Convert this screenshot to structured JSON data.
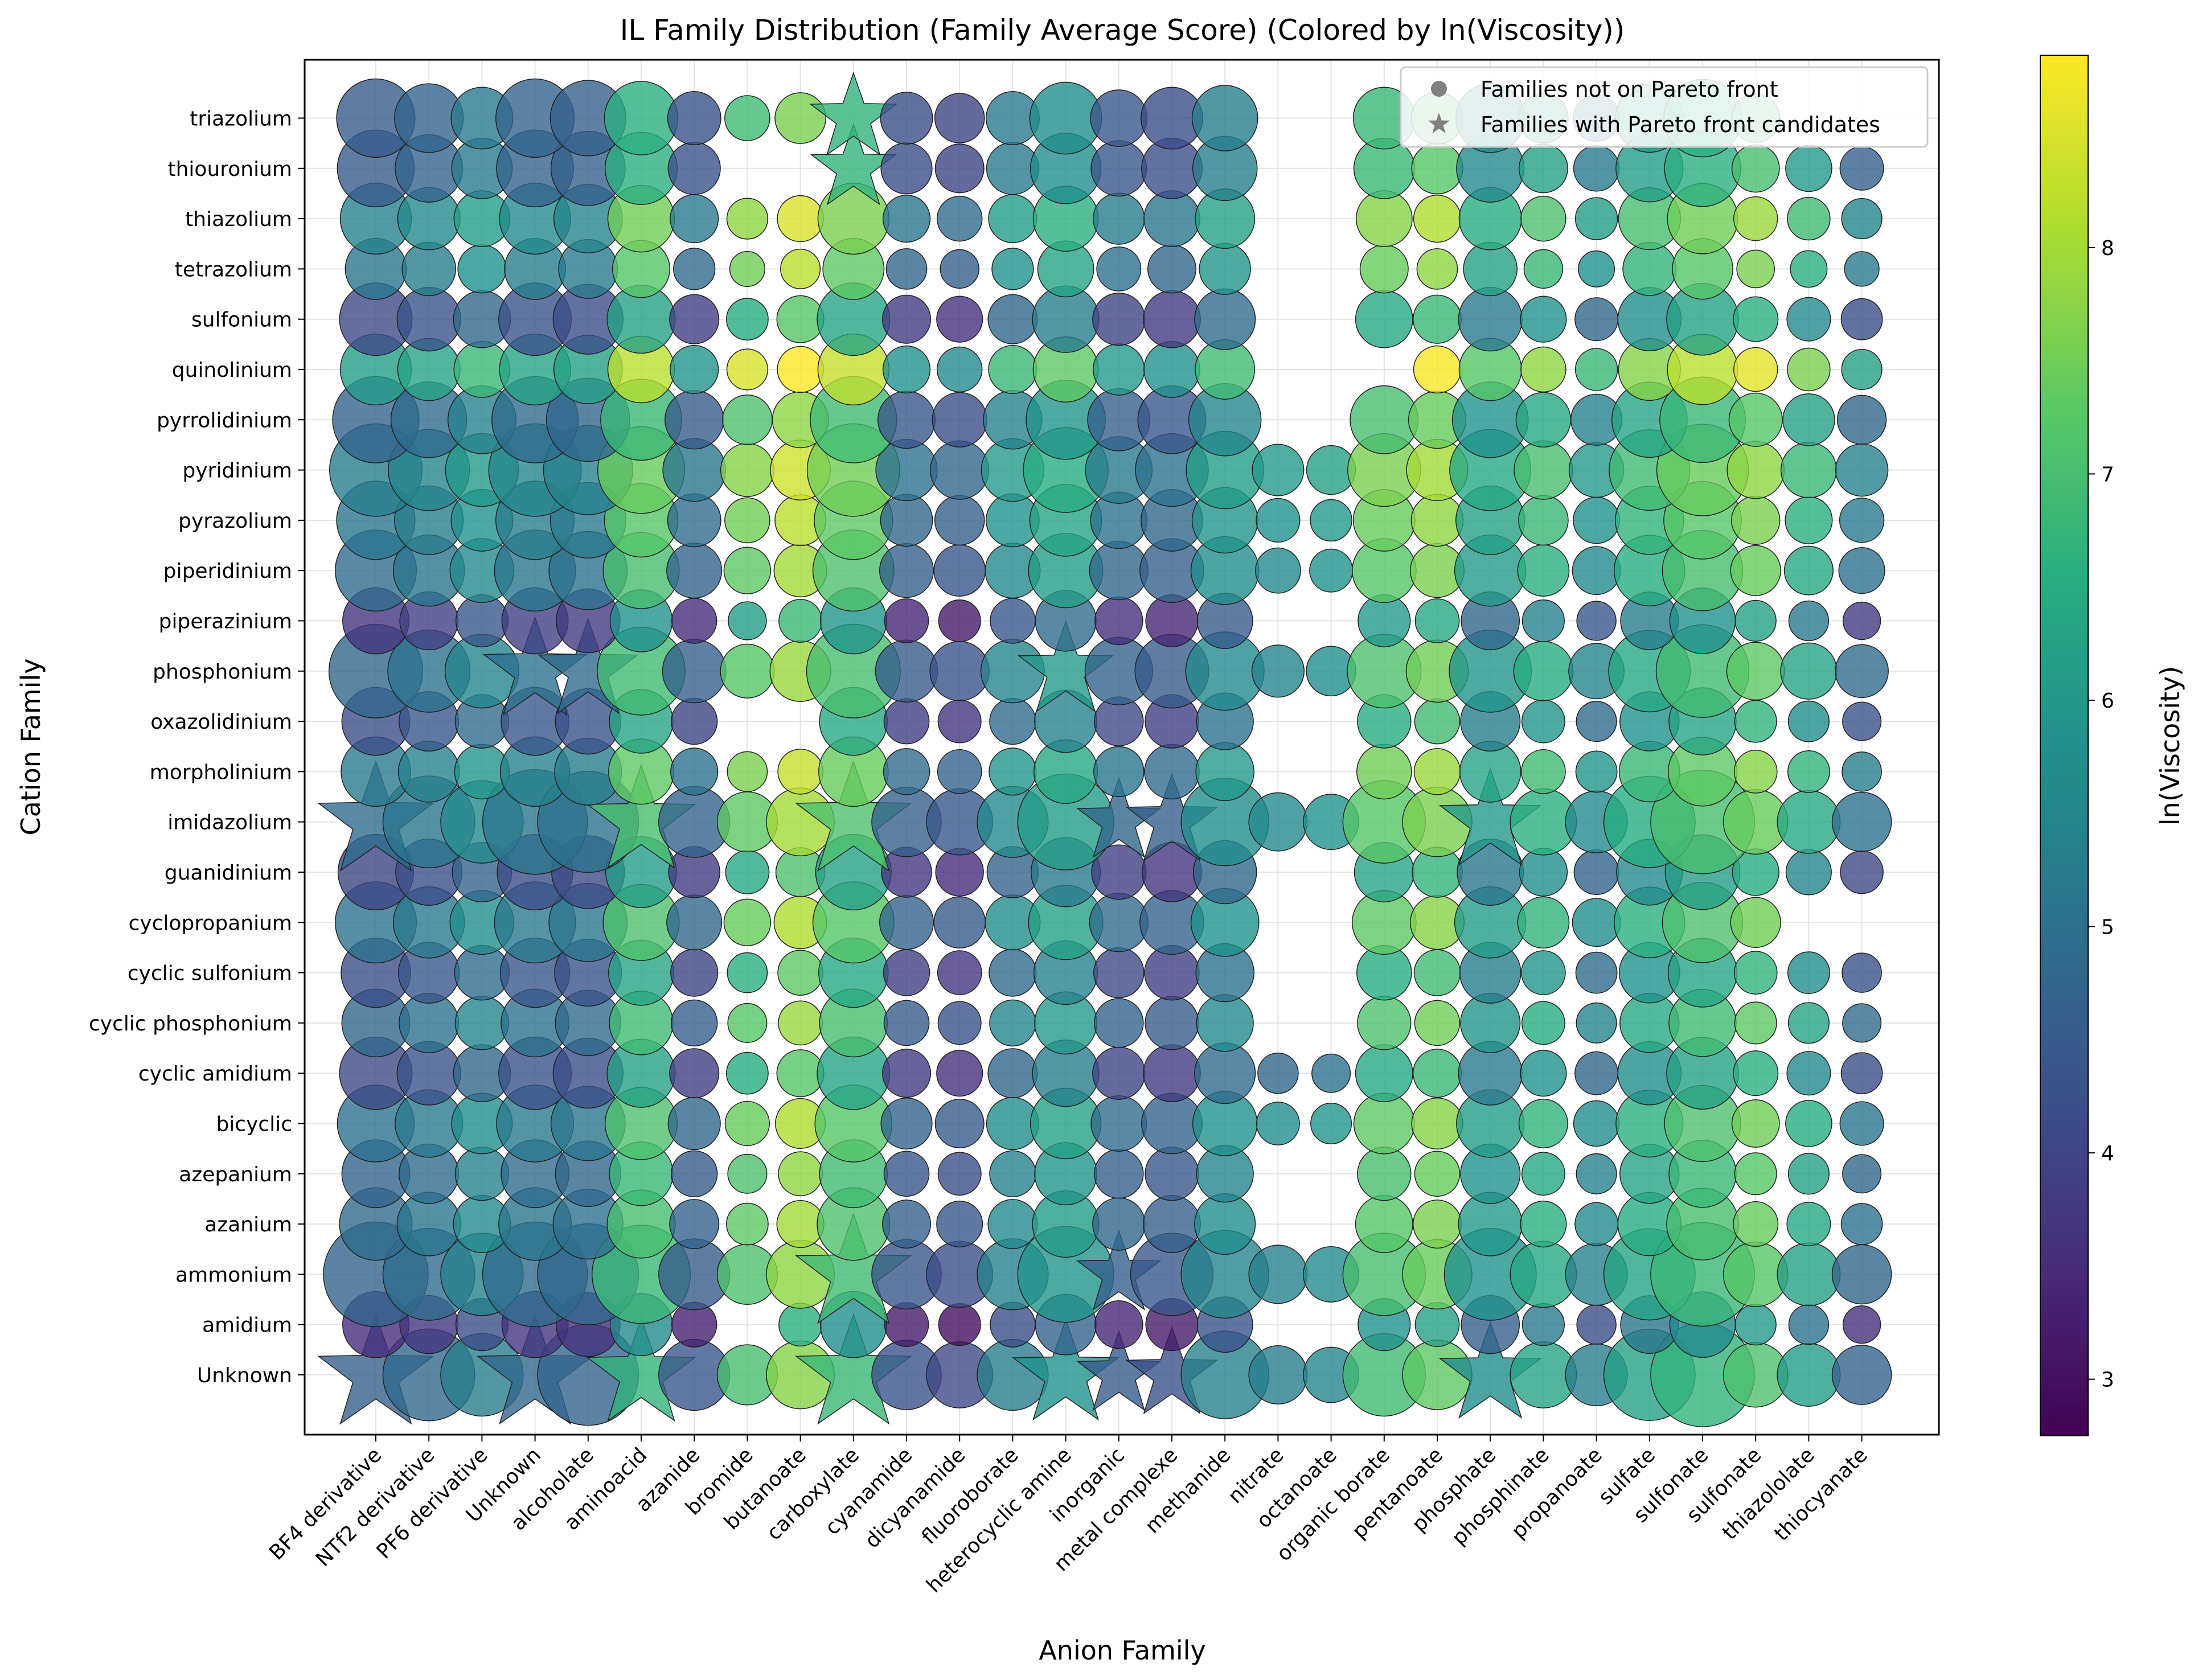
{
  "chart_data": {
    "type": "scatter",
    "title": "IL Family Distribution (Family Average Score) (Colored by ln(Viscosity))",
    "xlabel": "Anion Family",
    "ylabel": "Cation Family",
    "colorbar_label": "ln(Viscosity)",
    "colorbar_range": [
      2.75,
      8.85
    ],
    "colorbar_ticks": [
      "3",
      "4",
      "5",
      "6",
      "7",
      "8"
    ],
    "colormap": "viridis",
    "grid": true,
    "legend_position": "top-right",
    "legend": [
      {
        "marker": "circle",
        "label": "Families not on Pareto front"
      },
      {
        "marker": "star",
        "label": "Families with Pareto front candidates"
      }
    ],
    "x_categories": [
      "BF4 derivative",
      "NTf2 derivative",
      "PF6 derivative",
      "Unknown",
      "alcoholate",
      "aminoacid",
      "azanide",
      "bromide",
      "butanoate",
      "carboxylate",
      "cyanamide",
      "dicyanamide",
      "fluoroborate",
      "heterocyclic amine",
      "inorganic",
      "metal complexe",
      "methanide",
      "nitrate",
      "octanoate",
      "organic borate",
      "pentanoate",
      "phosphate",
      "phosphinate",
      "propanoate",
      "sulfate",
      "sulfonate",
      "sulfonate",
      "thiazololate",
      "thiocyanate"
    ],
    "y_categories": [
      "Unknown",
      "amidium",
      "ammonium",
      "azanium",
      "azepanium",
      "bicyclic",
      "cyclic amidium",
      "cyclic phosphonium",
      "cyclic sulfonium",
      "cyclopropanium",
      "guanidinium",
      "imidazolium",
      "morpholinium",
      "oxazolidinium",
      "phosphonium",
      "piperazinium",
      "piperidinium",
      "pyrazolium",
      "pyridinium",
      "pyrrolidinium",
      "quinolinium",
      "sulfonium",
      "tetrazolium",
      "thiazolium",
      "thiouronium",
      "triazolium"
    ],
    "marker_sizes_note": "size encodes number of ILs in family",
    "anion_base_color": [
      4.5,
      4.7,
      5.2,
      4.7,
      4.6,
      6.6,
      4.3,
      6.9,
      7.6,
      6.7,
      4.2,
      4.0,
      5.2,
      5.7,
      4.4,
      4.2,
      5.3,
      5.2,
      5.4,
      6.8,
      7.2,
      5.6,
      6.2,
      5.2,
      6.1,
      6.6,
      7.0,
      6.0,
      4.6
    ],
    "anion_base_size": [
      1.0,
      0.77,
      0.62,
      1.0,
      0.93,
      0.88,
      0.46,
      0.33,
      0.42,
      1.0,
      0.44,
      0.4,
      0.46,
      0.84,
      0.52,
      0.62,
      0.7,
      0.31,
      0.28,
      0.62,
      0.44,
      0.77,
      0.4,
      0.35,
      0.76,
      0.98,
      0.38,
      0.36,
      0.32
    ],
    "cation_color_shift": [
      0.1,
      -1.0,
      0.2,
      0.4,
      0.2,
      0.5,
      -0.4,
      0.3,
      -0.3,
      0.5,
      -0.5,
      0.4,
      0.7,
      -0.3,
      0.3,
      -0.8,
      0.4,
      0.6,
      0.8,
      0.2,
      1.6,
      -0.4,
      0.6,
      0.9,
      0.0,
      0.0
    ],
    "cation_size": [
      1.0,
      0.4,
      1.0,
      0.48,
      0.42,
      0.54,
      0.48,
      0.42,
      0.44,
      0.6,
      0.52,
      1.0,
      0.44,
      0.42,
      0.8,
      0.4,
      0.6,
      0.56,
      0.78,
      0.68,
      0.46,
      0.48,
      0.34,
      0.46,
      0.54,
      0.56
    ],
    "missing_points": [
      [
        1,
        7
      ],
      [
        1,
        17
      ],
      [
        1,
        18
      ],
      [
        3,
        17
      ],
      [
        3,
        18
      ],
      [
        4,
        17
      ],
      [
        4,
        18
      ],
      [
        7,
        17
      ],
      [
        7,
        18
      ],
      [
        8,
        17
      ],
      [
        8,
        18
      ],
      [
        9,
        17
      ],
      [
        9,
        18
      ],
      [
        9,
        27
      ],
      [
        9,
        28
      ],
      [
        10,
        17
      ],
      [
        10,
        18
      ],
      [
        12,
        17
      ],
      [
        12,
        18
      ],
      [
        13,
        7
      ],
      [
        13,
        8
      ],
      [
        13,
        17
      ],
      [
        13,
        18
      ],
      [
        15,
        17
      ],
      [
        15,
        18
      ],
      [
        19,
        17
      ],
      [
        19,
        18
      ],
      [
        20,
        17
      ],
      [
        20,
        18
      ],
      [
        20,
        19
      ],
      [
        21,
        17
      ],
      [
        21,
        18
      ],
      [
        22,
        17
      ],
      [
        22,
        18
      ],
      [
        23,
        17
      ],
      [
        23,
        18
      ],
      [
        24,
        7
      ],
      [
        24,
        8
      ],
      [
        24,
        17
      ],
      [
        24,
        18
      ],
      [
        25,
        17
      ],
      [
        25,
        18
      ],
      [
        25,
        27
      ],
      [
        25,
        28
      ]
    ],
    "pareto_stars": [
      [
        0,
        0
      ],
      [
        0,
        3
      ],
      [
        0,
        5
      ],
      [
        0,
        9
      ],
      [
        0,
        13
      ],
      [
        0,
        14
      ],
      [
        0,
        15
      ],
      [
        0,
        21
      ],
      [
        2,
        9
      ],
      [
        2,
        14
      ],
      [
        11,
        0
      ],
      [
        11,
        5
      ],
      [
        11,
        9
      ],
      [
        11,
        14
      ],
      [
        11,
        15
      ],
      [
        11,
        21
      ],
      [
        14,
        3
      ],
      [
        14,
        4
      ],
      [
        14,
        13
      ],
      [
        24,
        9
      ],
      [
        25,
        9
      ]
    ]
  }
}
